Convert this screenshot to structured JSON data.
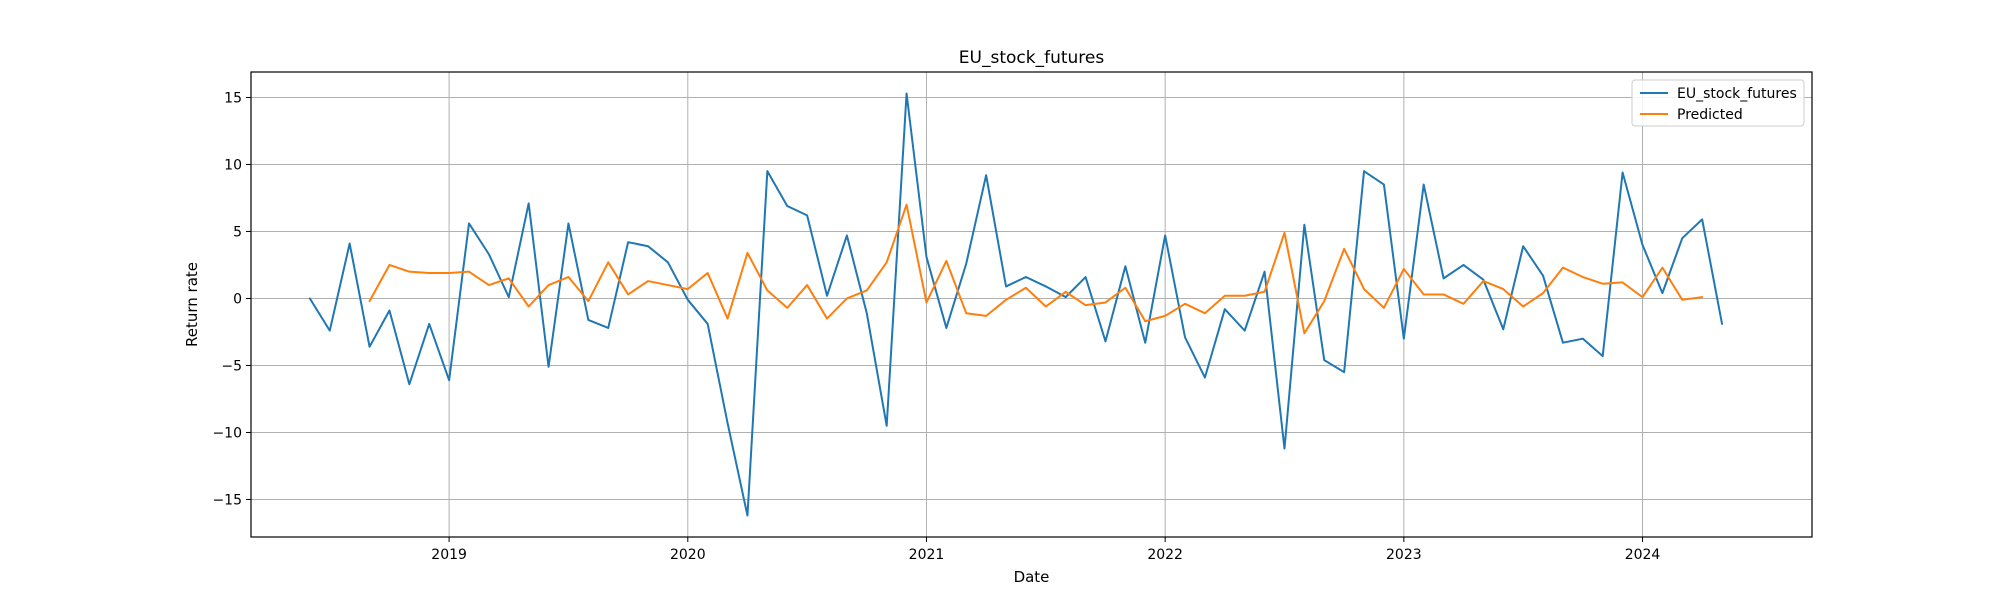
{
  "chart_data": {
    "type": "line",
    "title": "EU_stock_futures",
    "xlabel": "Date",
    "ylabel": "Return rate",
    "grid": true,
    "legend_position": "top-right",
    "xlim": [
      2018.17,
      2024.71
    ],
    "ylim": [
      -17.8,
      16.9
    ],
    "x_ticks": [
      {
        "value": 2019,
        "label": "2019"
      },
      {
        "value": 2020,
        "label": "2020"
      },
      {
        "value": 2021,
        "label": "2021"
      },
      {
        "value": 2022,
        "label": "2022"
      },
      {
        "value": 2023,
        "label": "2023"
      },
      {
        "value": 2024,
        "label": "2024"
      }
    ],
    "y_ticks": [
      {
        "value": 15,
        "label": "15"
      },
      {
        "value": 10,
        "label": "10"
      },
      {
        "value": 5,
        "label": "5"
      },
      {
        "value": 0,
        "label": "0"
      },
      {
        "value": -5,
        "label": "−5"
      },
      {
        "value": -10,
        "label": "−10"
      },
      {
        "value": -15,
        "label": "−15"
      }
    ],
    "series": [
      {
        "name": "EU_stock_futures",
        "color": "#1f77b4",
        "x_start": 2018.4167,
        "x_step": 0.08333,
        "values": [
          0.0,
          -2.4,
          4.1,
          -3.6,
          -0.9,
          -6.4,
          -1.9,
          -6.1,
          5.6,
          3.3,
          0.1,
          7.1,
          -5.1,
          5.6,
          -1.6,
          -2.2,
          4.2,
          3.9,
          2.7,
          -0.1,
          -1.9,
          -9.3,
          -16.2,
          9.5,
          6.9,
          6.2,
          0.2,
          4.7,
          -1.1,
          -9.5,
          15.3,
          3.1,
          -2.2,
          2.6,
          9.2,
          0.9,
          1.6,
          0.9,
          0.1,
          1.6,
          -3.2,
          2.4,
          -3.3,
          4.7,
          -2.9,
          -5.9,
          -0.8,
          -2.4,
          2.0,
          -11.2,
          5.5,
          -4.6,
          -5.5,
          9.5,
          8.5,
          -3.0,
          8.5,
          1.5,
          2.5,
          1.4,
          -2.3,
          3.9,
          1.7,
          -3.3,
          -3.0,
          -4.3,
          9.4,
          4.0,
          0.4,
          4.5,
          5.9,
          -1.9
        ]
      },
      {
        "name": "Predicted",
        "color": "#ff7f0e",
        "x_start": 2018.6667,
        "x_step": 0.08333,
        "values": [
          -0.2,
          2.5,
          2.0,
          1.9,
          1.9,
          2.0,
          1.0,
          1.5,
          -0.6,
          1.0,
          1.6,
          -0.2,
          2.7,
          0.3,
          1.3,
          1.0,
          0.7,
          1.9,
          -1.5,
          3.4,
          0.6,
          -0.7,
          1.0,
          -1.5,
          0.0,
          0.6,
          2.7,
          7.0,
          -0.3,
          2.8,
          -1.1,
          -1.3,
          -0.1,
          0.8,
          -0.6,
          0.5,
          -0.5,
          -0.3,
          0.8,
          -1.7,
          -1.3,
          -0.4,
          -1.1,
          0.2,
          0.2,
          0.5,
          4.9,
          -2.6,
          -0.2,
          3.7,
          0.7,
          -0.7,
          2.2,
          0.3,
          0.3,
          -0.4,
          1.3,
          0.7,
          -0.6,
          0.4,
          2.3,
          1.6,
          1.1,
          1.2,
          0.1,
          2.3,
          -0.1,
          0.1
        ]
      }
    ]
  }
}
